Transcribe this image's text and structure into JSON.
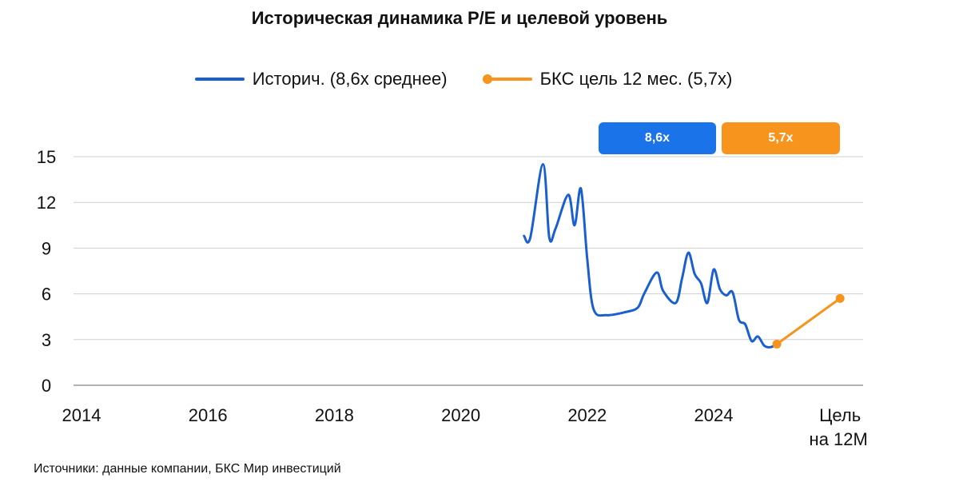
{
  "title": "Историческая динамика P/E и целевой уровень",
  "legend": {
    "historical": "Историч. (8,6x среднее)",
    "target": "БКС цель 12 мес. (5,7x)"
  },
  "badges": {
    "historical": "8,6x",
    "target": "5,7x"
  },
  "source": "Источники: данные компании, БКС Мир инвестиций",
  "colors": {
    "historical": "#1a5fd0",
    "target": "#f7941d",
    "badge_blue": "#1a73e8",
    "grid": "#cfcfcf"
  },
  "chart_data": {
    "type": "line",
    "title": "Историческая динамика P/E и целевой уровень",
    "x_ticks": [
      "2014",
      "2016",
      "2018",
      "2020",
      "2022",
      "2024",
      "Цель на 12M"
    ],
    "y_ticks": [
      0,
      3,
      6,
      9,
      12,
      15
    ],
    "ylim": [
      0,
      15
    ],
    "grid": "horizontal",
    "legend_position": "top-center",
    "series": [
      {
        "name": "Историч. (8,6x среднее)",
        "x": [
          2021.0,
          2021.1,
          2021.3,
          2021.4,
          2021.5,
          2021.7,
          2021.8,
          2021.9,
          2022.0,
          2022.1,
          2022.3,
          2022.6,
          2022.8,
          2022.9,
          2023.1,
          2023.2,
          2023.4,
          2023.5,
          2023.6,
          2023.7,
          2023.8,
          2023.9,
          2024.0,
          2024.1,
          2024.2,
          2024.3,
          2024.4,
          2024.5,
          2024.6,
          2024.7,
          2024.8,
          2024.9,
          2025.0
        ],
        "values": [
          9.8,
          9.7,
          14.5,
          9.7,
          10.3,
          12.5,
          10.5,
          12.9,
          8.3,
          5.0,
          4.6,
          4.8,
          5.1,
          6.0,
          7.4,
          6.2,
          5.4,
          7.0,
          8.7,
          7.3,
          6.7,
          5.4,
          7.6,
          6.3,
          5.9,
          6.1,
          4.3,
          4.0,
          2.9,
          3.2,
          2.6,
          2.5,
          2.7
        ],
        "color": "#1a5fd0"
      },
      {
        "name": "БКС цель 12 мес. (5,7x)",
        "x": [
          2025.0,
          2026.0
        ],
        "values": [
          2.7,
          5.7
        ],
        "color": "#f7941d"
      }
    ]
  }
}
